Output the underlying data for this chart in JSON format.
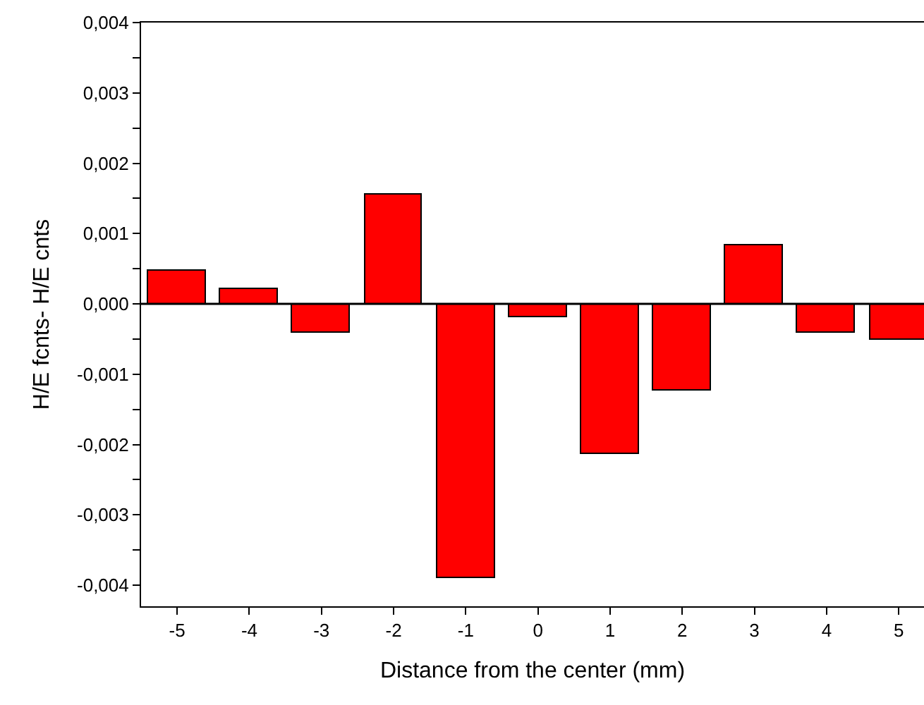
{
  "chart_data": {
    "type": "bar",
    "xlabel": "Distance from the center (mm)",
    "ylabel": "H/E fcnts- H/E cnts",
    "x": [
      -5,
      -4,
      -3,
      -2,
      -1,
      0,
      1,
      2,
      3,
      4,
      5
    ],
    "series": [
      {
        "color": "#ff0000",
        "values": [
          0.00047,
          0.00021,
          -0.00042,
          0.00156,
          -0.0039,
          -0.00018,
          -0.00213,
          -0.00124,
          0.00084,
          -0.00041,
          -0.00052
        ]
      }
    ],
    "xlim": [
      -5.5,
      5.35
    ],
    "xticks": [
      -5,
      -4,
      -3,
      -2,
      -1,
      0,
      1,
      2,
      3,
      4,
      5
    ],
    "ylim": [
      -0.0043,
      0.004
    ],
    "yticks": [
      {
        "value": -0.004,
        "label": "-0,004"
      },
      {
        "value": -0.0035,
        "label": null
      },
      {
        "value": -0.003,
        "label": "-0,003"
      },
      {
        "value": -0.0025,
        "label": null
      },
      {
        "value": -0.002,
        "label": "-0,002"
      },
      {
        "value": -0.0015,
        "label": null
      },
      {
        "value": -0.001,
        "label": "-0,001"
      },
      {
        "value": -0.0005,
        "label": null
      },
      {
        "value": 0,
        "label": "0,000"
      },
      {
        "value": 0.0005,
        "label": null
      },
      {
        "value": 0.001,
        "label": "0,001"
      },
      {
        "value": 0.0015,
        "label": null
      },
      {
        "value": 0.002,
        "label": "0,002"
      },
      {
        "value": 0.0025,
        "label": null
      },
      {
        "value": 0.003,
        "label": "0,003"
      },
      {
        "value": 0.0035,
        "label": null
      },
      {
        "value": 0.004,
        "label": "0,004"
      }
    ],
    "ref_lines": [
      {
        "axis": "y",
        "value": 0,
        "color": "#000000",
        "line_style": "solid"
      }
    ]
  }
}
